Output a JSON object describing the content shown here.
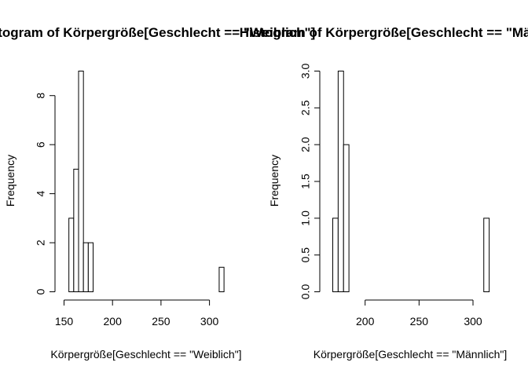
{
  "chart_data": [
    {
      "type": "bar",
      "title": "Histogram of Körpergröße[Geschlecht == \"Weiblich\"]",
      "xlabel": "Körpergröße[Geschlecht == \"Weiblich\"]",
      "ylabel": "Frequency",
      "bin_width": 5,
      "x": [
        155,
        160,
        165,
        170,
        175,
        180,
        185,
        190,
        195,
        200,
        205,
        210,
        215,
        220,
        225,
        230,
        235,
        240,
        245,
        250,
        255,
        260,
        265,
        270,
        275,
        280,
        285,
        290,
        295,
        300,
        305,
        310
      ],
      "values": [
        3,
        5,
        9,
        2,
        2,
        0,
        0,
        0,
        0,
        0,
        0,
        0,
        0,
        0,
        0,
        0,
        0,
        0,
        0,
        0,
        0,
        0,
        0,
        0,
        0,
        0,
        0,
        0,
        0,
        0,
        0,
        1
      ],
      "xlim": [
        155,
        315
      ],
      "ylim": [
        0,
        9
      ],
      "x_axis_range": [
        150,
        300
      ],
      "x_ticks": [
        150,
        200,
        250,
        300
      ],
      "y_ticks": [
        0,
        2,
        4,
        6,
        8
      ],
      "x_tick_labels": [
        "150",
        "200",
        "250",
        "300"
      ],
      "y_tick_labels": [
        "0",
        "2",
        "4",
        "6",
        "8"
      ],
      "grid": false
    },
    {
      "type": "bar",
      "title": "Histogram of Körpergröße[Geschlecht == \"Männlich\"]",
      "xlabel": "Körpergröße[Geschlecht == \"Männlich\"]",
      "ylabel": "Frequency",
      "bin_width": 5,
      "x": [
        170,
        175,
        180,
        185,
        190,
        195,
        200,
        205,
        210,
        215,
        220,
        225,
        230,
        235,
        240,
        245,
        250,
        255,
        260,
        265,
        270,
        275,
        280,
        285,
        290,
        295,
        300,
        305,
        310
      ],
      "values": [
        1,
        3,
        2,
        0,
        0,
        0,
        0,
        0,
        0,
        0,
        0,
        0,
        0,
        0,
        0,
        0,
        0,
        0,
        0,
        0,
        0,
        0,
        0,
        0,
        0,
        0,
        0,
        0,
        1
      ],
      "xlim": [
        170,
        315
      ],
      "ylim": [
        0,
        3
      ],
      "x_axis_range": [
        200,
        300
      ],
      "x_ticks": [
        200,
        250,
        300
      ],
      "y_ticks": [
        0,
        0.5,
        1,
        1.5,
        2,
        2.5,
        3
      ],
      "x_tick_labels": [
        "200",
        "250",
        "300"
      ],
      "y_tick_labels": [
        "0.0",
        "0.5",
        "1.0",
        "1.5",
        "2.0",
        "2.5",
        "3.0"
      ],
      "grid": false
    }
  ]
}
